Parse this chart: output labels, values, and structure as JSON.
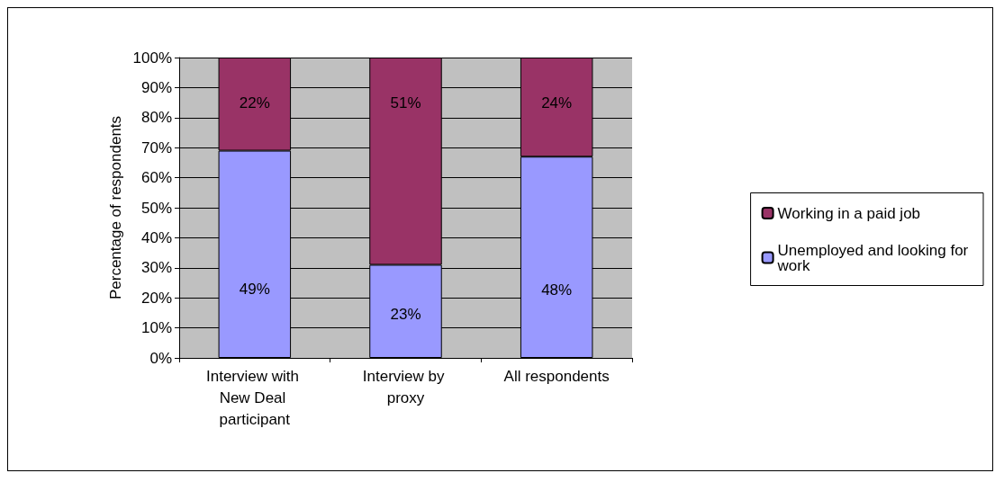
{
  "chart_data": {
    "type": "bar",
    "stacked": true,
    "ylabel": "Percentage of respondents",
    "categories": [
      "Interview with New Deal participant",
      "Interview by proxy",
      "All respondents"
    ],
    "series": [
      {
        "name": "Unemployed and looking for work",
        "color": "#9999ff",
        "values": [
          69,
          31,
          67
        ]
      },
      {
        "name": "Working in a paid job",
        "color": "#993366",
        "values": [
          31,
          69,
          33
        ]
      }
    ],
    "annotations": [
      "49%",
      "23%",
      "48%",
      "22%",
      "51%",
      "24%"
    ],
    "ylim": [
      0,
      100
    ],
    "yticks": [
      {
        "value": 0,
        "label": "0%"
      },
      {
        "value": 10,
        "label": "10%"
      },
      {
        "value": 20,
        "label": "20%"
      },
      {
        "value": 30,
        "label": "30%"
      },
      {
        "value": 40,
        "label": "40%"
      },
      {
        "value": 50,
        "label": "50%"
      },
      {
        "value": 60,
        "label": "60%"
      },
      {
        "value": 70,
        "label": "70%"
      },
      {
        "value": 80,
        "label": "80%"
      },
      {
        "value": 90,
        "label": "90%"
      },
      {
        "value": 100,
        "label": "100%"
      }
    ],
    "grid": "y",
    "legend": "right"
  }
}
